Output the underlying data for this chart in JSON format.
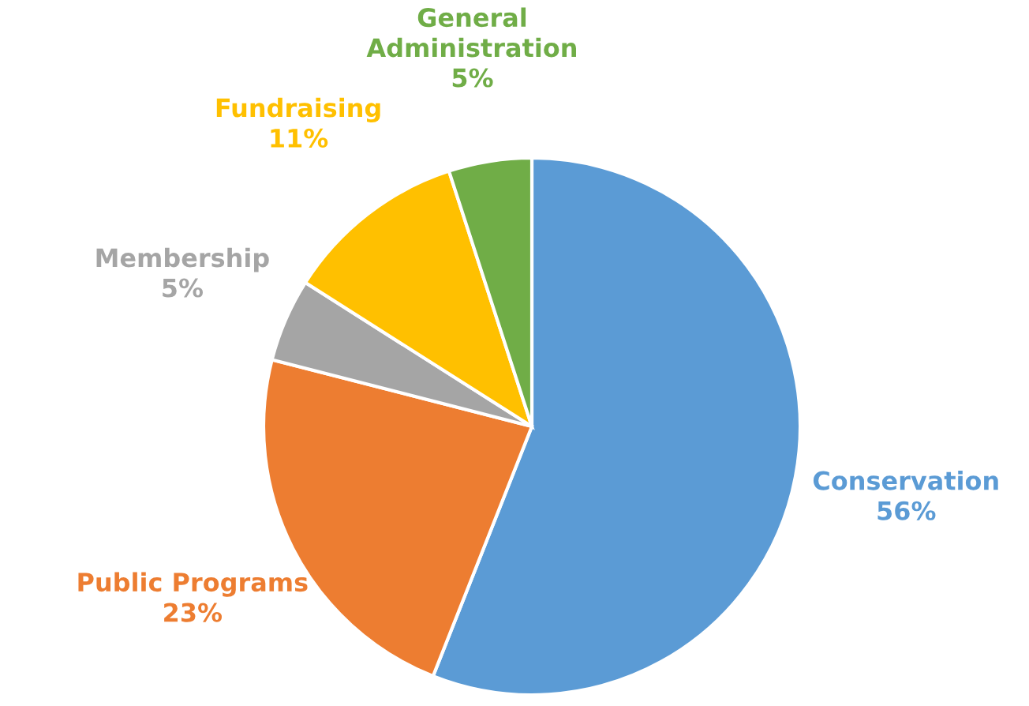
{
  "chart_data": {
    "type": "pie",
    "categories": [
      "Conservation",
      "Public Programs",
      "Membership",
      "Fundraising",
      "General Administration"
    ],
    "values": [
      56,
      23,
      5,
      11,
      5
    ],
    "value_labels": [
      "56%",
      "23%",
      "5%",
      "11%",
      "5%"
    ],
    "colors": [
      "#5b9bd5",
      "#ed7d31",
      "#a5a5a5",
      "#ffc000",
      "#70ad47"
    ]
  }
}
